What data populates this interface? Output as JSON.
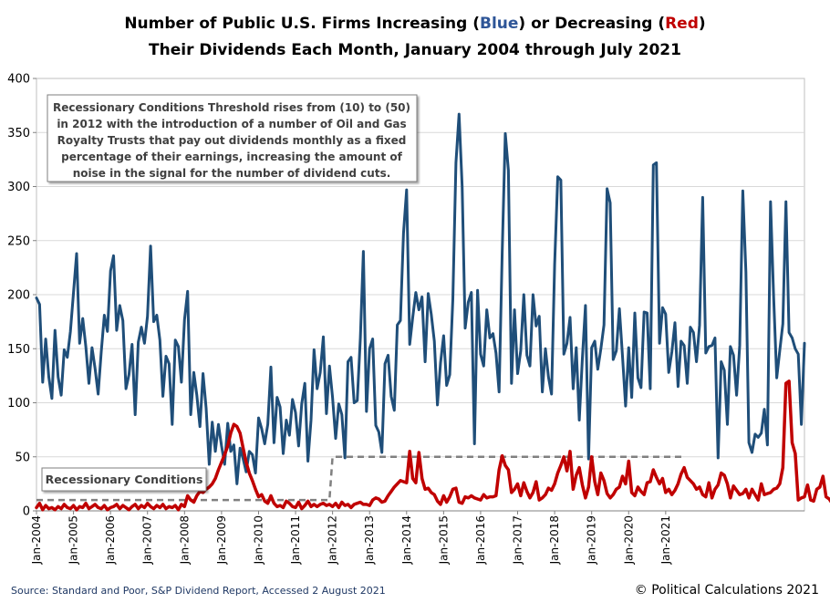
{
  "chart_data": {
    "type": "line",
    "title_line1_a": "Number of Public U.S. Firms Increasing (",
    "title_line1_blue": "Blue",
    "title_line1_b": ")  or Decreasing (",
    "title_line1_red": "Red",
    "title_line1_c": ")",
    "title_line2": "Their Dividends Each Month, January 2004 through July 2021",
    "ylim": [
      0,
      400
    ],
    "y_ticks": [
      "0",
      "50",
      "100",
      "150",
      "200",
      "250",
      "300",
      "350",
      "400"
    ],
    "x_tick_labels": [
      "Jan-2004",
      "Jan-2005",
      "Jan-2006",
      "Jan-2007",
      "Jan-2008",
      "Jan-2009",
      "Jan-2010",
      "Jan-2011",
      "Jan-2012",
      "Jan-2013",
      "Jan-2014",
      "Jan-2015",
      "Jan-2016",
      "Jan-2017",
      "Jan-2018",
      "Jan-2019",
      "Jan-2020",
      "Jan-2021"
    ],
    "start": "2004-01",
    "series": [
      {
        "name": "Increasing",
        "color": "#1f4e79",
        "values": [
          197,
          191,
          119,
          159,
          124,
          104,
          167,
          124,
          107,
          149,
          142,
          166,
          202,
          238,
          155,
          178,
          152,
          118,
          151,
          132,
          108,
          147,
          181,
          166,
          222,
          236,
          167,
          190,
          176,
          113,
          126,
          154,
          89,
          156,
          170,
          155,
          180,
          245,
          175,
          181,
          158,
          106,
          143,
          136,
          80,
          158,
          152,
          119,
          177,
          203,
          89,
          128,
          107,
          78,
          127,
          95,
          43,
          82,
          55,
          80,
          60,
          43,
          81,
          55,
          61,
          25,
          58,
          48,
          36,
          55,
          52,
          35,
          86,
          76,
          62,
          80,
          133,
          63,
          105,
          96,
          53,
          84,
          70,
          103,
          91,
          60,
          99,
          118,
          46,
          84,
          149,
          113,
          128,
          161,
          90,
          134,
          105,
          67,
          99,
          89,
          49,
          138,
          142,
          100,
          102,
          160,
          240,
          92,
          150,
          159,
          79,
          73,
          54,
          136,
          144,
          106,
          93,
          172,
          176,
          257,
          297,
          154,
          179,
          202,
          186,
          198,
          138,
          201,
          182,
          157,
          98,
          137,
          162,
          116,
          126,
          196,
          322,
          367,
          300,
          169,
          193,
          202,
          62,
          204,
          145,
          134,
          186,
          160,
          164,
          146,
          110,
          239,
          349,
          315,
          118,
          186,
          127,
          148,
          200,
          144,
          134,
          200,
          171,
          180,
          110,
          150,
          124,
          108,
          228,
          309,
          306,
          145,
          155,
          179,
          113,
          151,
          84,
          141,
          190,
          48,
          151,
          157,
          131,
          150,
          172,
          298,
          285,
          140,
          148,
          187,
          143,
          97,
          151,
          105,
          183,
          123,
          114,
          184,
          183,
          113,
          320,
          322,
          155,
          188,
          182,
          128,
          147,
          174,
          115,
          157,
          153,
          118,
          170,
          165,
          138,
          172,
          290,
          146,
          152,
          153,
          160,
          49,
          138,
          130,
          80,
          152,
          144,
          107,
          153,
          296,
          221,
          63,
          54,
          71,
          68,
          72,
          94,
          61,
          286,
          198,
          123,
          148,
          173,
          286,
          165,
          160,
          150,
          145,
          80,
          155
        ]
      },
      {
        "name": "Decreasing",
        "color": "#c00000",
        "values": [
          3,
          7,
          1,
          5,
          2,
          3,
          1,
          4,
          2,
          6,
          3,
          2,
          5,
          1,
          4,
          3,
          7,
          2,
          4,
          6,
          3,
          2,
          5,
          1,
          3,
          4,
          6,
          2,
          5,
          3,
          1,
          4,
          6,
          2,
          5,
          3,
          7,
          4,
          2,
          5,
          3,
          6,
          2,
          4,
          3,
          5,
          1,
          6,
          4,
          14,
          10,
          8,
          14,
          18,
          17,
          20,
          22,
          25,
          30,
          38,
          45,
          52,
          60,
          72,
          80,
          78,
          72,
          58,
          45,
          35,
          28,
          20,
          13,
          15,
          9,
          7,
          14,
          7,
          4,
          5,
          3,
          9,
          7,
          4,
          3,
          8,
          2,
          5,
          9,
          4,
          6,
          4,
          6,
          7,
          5,
          6,
          4,
          7,
          3,
          8,
          5,
          6,
          3,
          6,
          7,
          8,
          6,
          6,
          5,
          10,
          12,
          11,
          8,
          9,
          14,
          18,
          22,
          25,
          28,
          27,
          26,
          55,
          30,
          26,
          54,
          30,
          20,
          21,
          17,
          15,
          9,
          6,
          14,
          8,
          13,
          20,
          21,
          8,
          7,
          13,
          12,
          14,
          12,
          11,
          10,
          15,
          12,
          13,
          13,
          14,
          38,
          51,
          42,
          38,
          17,
          20,
          25,
          14,
          26,
          18,
          12,
          17,
          27,
          10,
          12,
          15,
          21,
          19,
          25,
          35,
          42,
          50,
          37,
          55,
          20,
          33,
          40,
          24,
          12,
          22,
          50,
          27,
          15,
          35,
          28,
          16,
          12,
          15,
          20,
          22,
          32,
          25,
          46,
          17,
          14,
          22,
          18,
          15,
          26,
          27,
          38,
          31,
          25,
          30,
          17,
          20,
          15,
          19,
          25,
          34,
          40,
          31,
          28,
          25,
          20,
          22,
          15,
          13,
          26,
          12,
          20,
          24,
          35,
          33,
          25,
          12,
          23,
          19,
          15,
          16,
          20,
          12,
          20,
          15,
          10,
          25,
          15,
          16,
          17,
          20,
          21,
          25,
          40,
          118,
          120,
          63,
          53,
          10,
          12,
          13,
          24,
          10,
          9,
          20,
          22,
          32,
          13,
          11,
          7,
          6,
          12
        ]
      }
    ],
    "threshold": {
      "name": "Recessionary Conditions",
      "segments": [
        {
          "from": "2004-01",
          "to": "2011-12",
          "value": 10
        },
        {
          "from": "2012-01",
          "to": "2021-07",
          "value": 50
        }
      ]
    },
    "annotation_lines": [
      "Recessionary Conditions Threshold rises from (10) to (50)",
      "in 2012 with the introduction of a number of Oil and Gas",
      "Royalty Trusts that pay out dividends monthly as a fixed",
      "percentage of their earnings, increasing the amount of",
      "noise in the signal for the number of dividend cuts."
    ],
    "source": "Source:  Standard and Poor,  S&P Dividend  Report,  Accessed 2 August 2021",
    "credit": "© Political Calculations 2021"
  }
}
